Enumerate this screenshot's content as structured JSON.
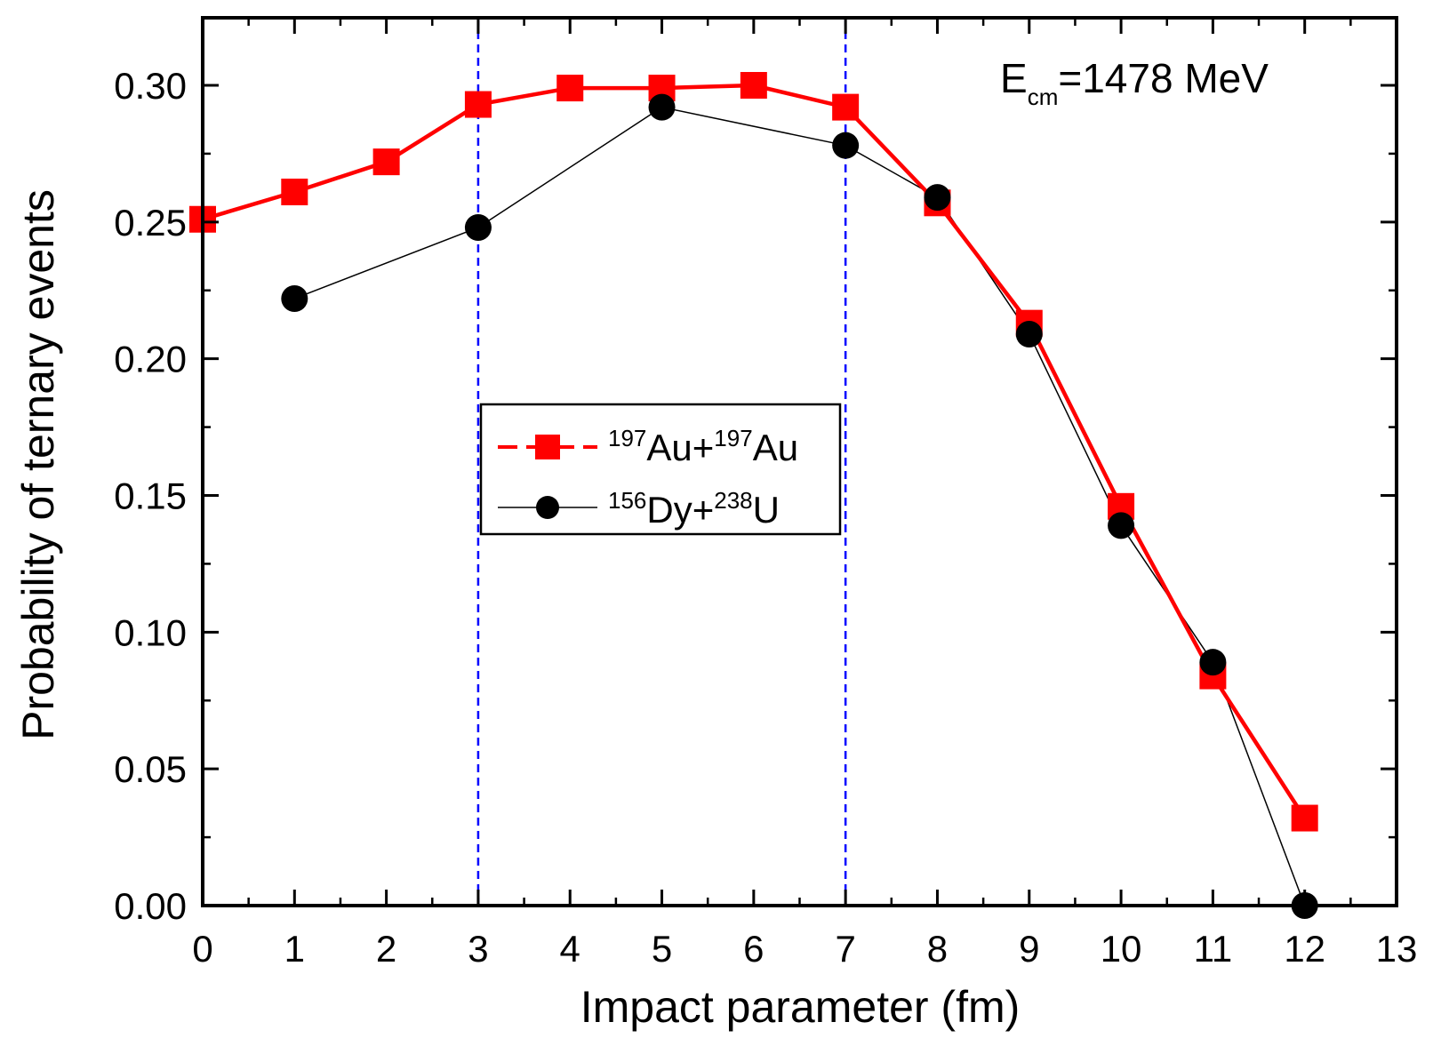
{
  "chart_data": {
    "type": "line",
    "xlabel": "Impact parameter (fm)",
    "ylabel": "Probability of ternary events",
    "xlim": [
      0,
      13
    ],
    "ylim": [
      0,
      0.3
    ],
    "xticks": [
      0,
      1,
      2,
      3,
      4,
      5,
      6,
      7,
      8,
      9,
      10,
      11,
      12,
      13
    ],
    "xtick_labels": [
      "0",
      "1",
      "2",
      "3",
      "4",
      "5",
      "6",
      "7",
      "8",
      "9",
      "10",
      "11",
      "12",
      "13"
    ],
    "yticks": [
      0,
      0.05,
      0.1,
      0.15,
      0.2,
      0.25,
      0.3
    ],
    "ytick_labels": [
      "0.00",
      "0.05",
      "0.10",
      "0.15",
      "0.20",
      "0.25",
      "0.30"
    ],
    "grid": false,
    "legend_position": "center",
    "vertical_reference_lines": [
      3,
      7
    ],
    "annotation": {
      "main": "E",
      "subscript": "cm",
      "rest": "=1478 MeV"
    },
    "series": [
      {
        "name": "197Au+197Au",
        "legend": {
          "sup1": "197",
          "el1": "Au+",
          "sup2": "197",
          "el2": "Au"
        },
        "color": "#ff0000",
        "marker": "square",
        "x": [
          0,
          1,
          2,
          3,
          4,
          5,
          6,
          7,
          8,
          9,
          10,
          11,
          12
        ],
        "y": [
          0.251,
          0.261,
          0.272,
          0.293,
          0.299,
          0.299,
          0.3,
          0.292,
          0.257,
          0.213,
          0.146,
          0.084,
          0.032
        ]
      },
      {
        "name": "156Dy+238U",
        "legend": {
          "sup1": "156",
          "el1": "Dy+",
          "sup2": "238",
          "el2": "U"
        },
        "color": "#000000",
        "marker": "circle",
        "x": [
          1,
          3,
          5,
          7,
          8,
          9,
          10,
          11,
          12
        ],
        "y": [
          0.222,
          0.248,
          0.292,
          0.278,
          0.259,
          0.209,
          0.139,
          0.089,
          0.0
        ]
      }
    ]
  },
  "colors": {
    "reference_line": "#0000ff",
    "axis": "#000000"
  }
}
